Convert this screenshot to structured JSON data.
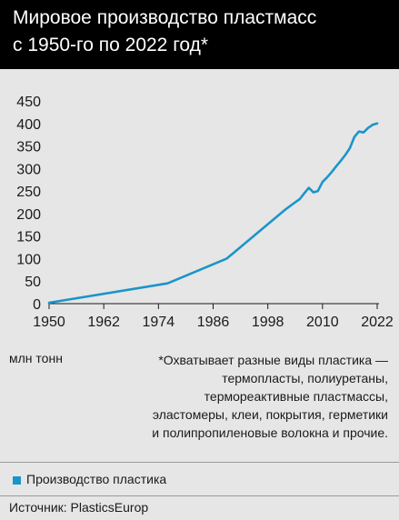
{
  "title": {
    "line1": "Мировое производство пластмасс",
    "line2": "с 1950-го по 2022 год*"
  },
  "unit_label": "млн тонн",
  "footnote": [
    "*Охватывает разные виды пластика —",
    "термопласты, полиуретаны,",
    "термореактивные пластмассы,",
    "эластомеры, клеи, покрытия, герметики",
    "и полипропиленовые волокна и прочие."
  ],
  "legend": {
    "label": "Производство пластика"
  },
  "source": "Источник: PlasticsEurop",
  "colors": {
    "series": "#1b95c9",
    "header_bg": "#000000",
    "background": "#e6e6e6"
  },
  "chart_data": {
    "type": "line",
    "xlim": [
      1950,
      2022
    ],
    "ylim": [
      0,
      450
    ],
    "x_ticks": [
      1950,
      1962,
      1974,
      1986,
      1998,
      2010,
      2022
    ],
    "y_ticks": [
      0,
      50,
      100,
      150,
      200,
      250,
      300,
      350,
      400,
      450
    ],
    "grid": false,
    "legend": "bottom",
    "series": [
      {
        "name": "Производство пластика",
        "x": [
          1950,
          1976,
          1989,
          2002,
          2004,
          2005,
          2006,
          2007,
          2008,
          2009,
          2010,
          2011,
          2012,
          2013,
          2014,
          2015,
          2016,
          2017,
          2018,
          2019,
          2020,
          2021,
          2022
        ],
        "y": [
          2,
          45,
          100,
          210,
          225,
          232,
          245,
          257,
          247,
          250,
          270,
          280,
          292,
          305,
          317,
          330,
          345,
          370,
          382,
          380,
          390,
          397,
          400
        ]
      }
    ]
  }
}
